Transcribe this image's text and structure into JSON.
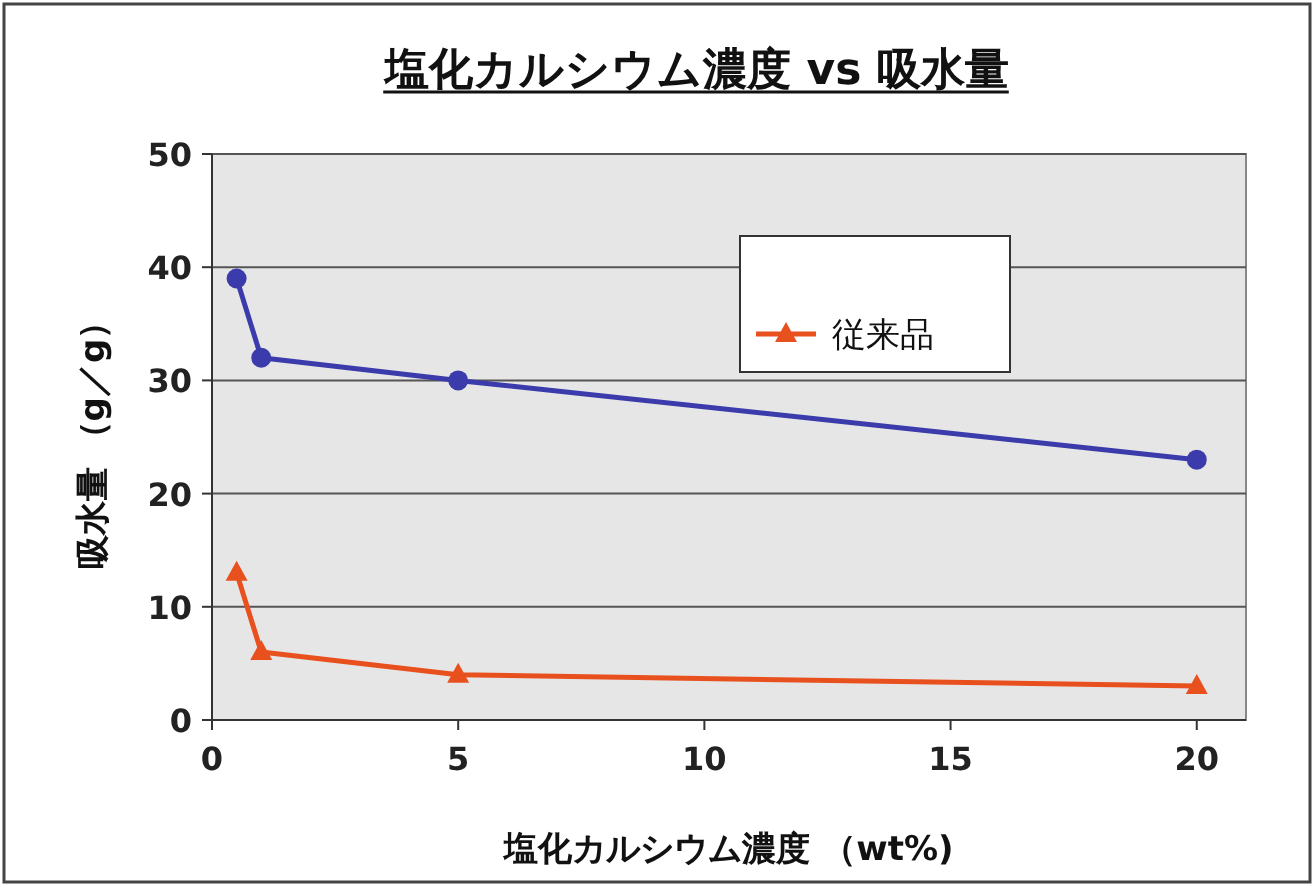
{
  "chart_data": {
    "type": "line",
    "title": "塩化カルシウム濃度 vs 吸水量",
    "xlabel": "塩化カルシウム濃度 （wt%)",
    "ylabel": "吸水量 （g／g）",
    "x": [
      0.5,
      1,
      5,
      20
    ],
    "series": [
      {
        "color": "#3b3bab",
        "marker": "circle",
        "values": [
          39,
          32,
          30,
          23
        ]
      },
      {
        "name": "従来品",
        "color": "#e8501e",
        "marker": "triangle",
        "values": [
          13,
          6,
          4,
          3
        ]
      }
    ],
    "xlim": [
      0,
      21
    ],
    "xticks": [
      0,
      5,
      10,
      15,
      20
    ],
    "ylim": [
      0,
      50
    ],
    "yticks": [
      0,
      10,
      20,
      30,
      40,
      50
    ],
    "grid": "y",
    "legend": "top right"
  }
}
